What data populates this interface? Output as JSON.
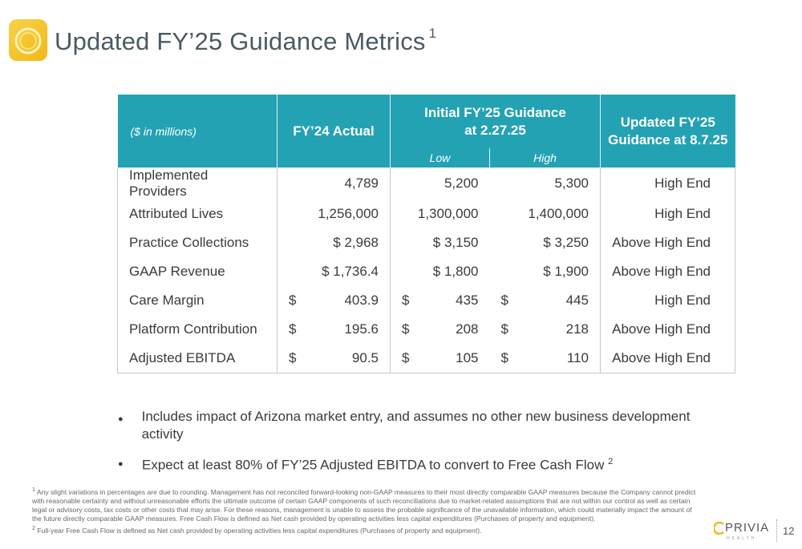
{
  "header": {
    "title": "Updated FY’25 Guidance Metrics",
    "title_sup": "1",
    "logo_icon": "privia-sun-icon"
  },
  "table": {
    "units_label": "($ in millions)",
    "col_fy24": "FY’24 Actual",
    "col_initial_line1": "Initial FY’25 Guidance",
    "col_initial_line2": "at 2.27.25",
    "col_low": "Low",
    "col_high": "High",
    "col_updated_line1": "Updated FY’25",
    "col_updated_line2": "Guidance at 8.7.25",
    "rows": [
      {
        "metric": "Implemented Providers",
        "fy24": "4,789",
        "low": "5,200",
        "high": "5,300",
        "updated": "High End"
      },
      {
        "metric": "Attributed Lives",
        "fy24": "1,256,000",
        "low": "1,300,000",
        "high": "1,400,000",
        "updated": "High End"
      },
      {
        "metric": "Practice Collections",
        "fy24": "$ 2,968",
        "low": "$ 3,150",
        "high": "$ 3,250",
        "updated": "Above High End"
      },
      {
        "metric": "GAAP Revenue",
        "fy24": "$ 1,736.4",
        "low": "$ 1,800",
        "high": "$  1,900",
        "updated": "Above High End"
      },
      {
        "metric": "Care Margin",
        "fy24_sym": "$",
        "fy24_val": "403.9",
        "low_sym": "$",
        "low_val": "435",
        "high_sym": "$",
        "high_val": "445",
        "updated": "High End"
      },
      {
        "metric": "Platform Contribution",
        "fy24_sym": "$",
        "fy24_val": "195.6",
        "low_sym": "$",
        "low_val": "208",
        "high_sym": "$",
        "high_val": "218",
        "updated": "Above High End"
      },
      {
        "metric": "Adjusted EBITDA",
        "fy24_sym": "$",
        "fy24_val": "90.5",
        "low_sym": "$",
        "low_val": "105",
        "high_sym": "$",
        "high_val": "110",
        "updated": "Above High End"
      }
    ]
  },
  "bullets": [
    {
      "text": "Includes impact of Arizona market entry, and assumes no other new business development activity",
      "sup": ""
    },
    {
      "text": "Expect at least 80% of FY’25 Adjusted EBITDA to convert to Free Cash Flow",
      "sup": "2"
    }
  ],
  "footnotes": {
    "note1_mark": "1",
    "note1": "Any slight variations in percentages are due to rounding. Management has not reconciled forward-looking non-GAAP measures to their most directly comparable GAAP measures because the Company cannot predict with reasonable certainty and without unreasonable efforts the ultimate outcome of certain GAAP components of such reconciliations due to market-related assumptions that are not within our control as well as certain legal or advisory costs, tax costs or other costs that may arise. For these reasons, management is unable to assess the probable significance of the unavailable information, which could materially impact the amount of the future directly comparable GAAP measures. Free Cash Flow is defined as Net cash provided by operating activities less capital expenditures (Purchases of property and equipment).",
    "note2_mark": "2",
    "note2": "Full-year Free Cash Flow is defined as Net cash provided by operating activities less capital expenditures (Purchases of property and equipment)."
  },
  "footer": {
    "brand": "PRIVIA",
    "brand_sub": "HEALTH",
    "page_number": "12"
  },
  "colors": {
    "header_teal": "#23a2b3",
    "logo_gold": "#f2b814"
  }
}
